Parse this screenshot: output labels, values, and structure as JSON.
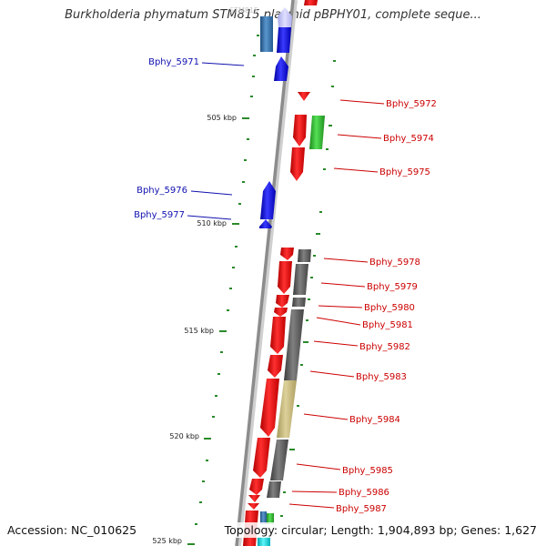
{
  "title": "Burkholderia phymatum STM815 plasmid pBPHY01, complete seque...",
  "ghost_label": "STM815",
  "footer": {
    "accession": "Accession: NC_010625",
    "topology": "Topology: circular; Length: 1,904,893 bp; Genes: 1,627"
  },
  "colors": {
    "backbone": "#8c8c8c",
    "tick": "#2a8a2a",
    "label_left": "#1010b0",
    "label_right": "#cc0000",
    "gene_red": "#ff0000",
    "gene_blue": "#1a1aff",
    "gene_green": "#33cc33",
    "gene_steel": "#3a78b0",
    "gene_lavender": "#c8c8ff",
    "gene_gray": "#666666",
    "gene_khaki": "#c8bb7a",
    "gene_cyan": "#00e0e8"
  },
  "kbp_labels": [
    "505 kbp",
    "510 kbp",
    "515 kbp",
    "520 kbp",
    "525 kbp"
  ],
  "genes_left": [
    "Bphy_5971",
    "Bphy_5976",
    "Bphy_5977"
  ],
  "genes_right": [
    "Bphy_5972",
    "Bphy_5974",
    "Bphy_5975",
    "Bphy_5978",
    "Bphy_5979",
    "Bphy_5980",
    "Bphy_5981",
    "Bphy_5982",
    "Bphy_5983",
    "Bphy_5984",
    "Bphy_5985",
    "Bphy_5986",
    "Bphy_5987"
  ]
}
